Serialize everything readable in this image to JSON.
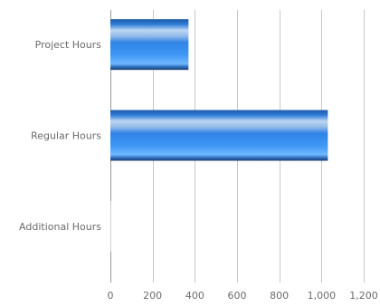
{
  "chart_data": {
    "type": "bar",
    "orientation": "horizontal",
    "categories": [
      "Project Hours",
      "Regular Hours",
      "Additional Hours"
    ],
    "values": [
      370,
      1030,
      0
    ],
    "xlim": [
      0,
      1200
    ],
    "xticks": [
      0,
      200,
      400,
      600,
      800,
      1000,
      1200
    ],
    "xtick_labels": [
      "0",
      "200",
      "400",
      "600",
      "800",
      "1,000",
      "1,200"
    ],
    "grid": true,
    "legend": "none",
    "colors": {
      "bar_dark": "#1f4f8f",
      "bar_mid": "#2f7fe0",
      "bar_light": "#b8d2f0",
      "bar_bright": "#4aa4ff"
    }
  }
}
